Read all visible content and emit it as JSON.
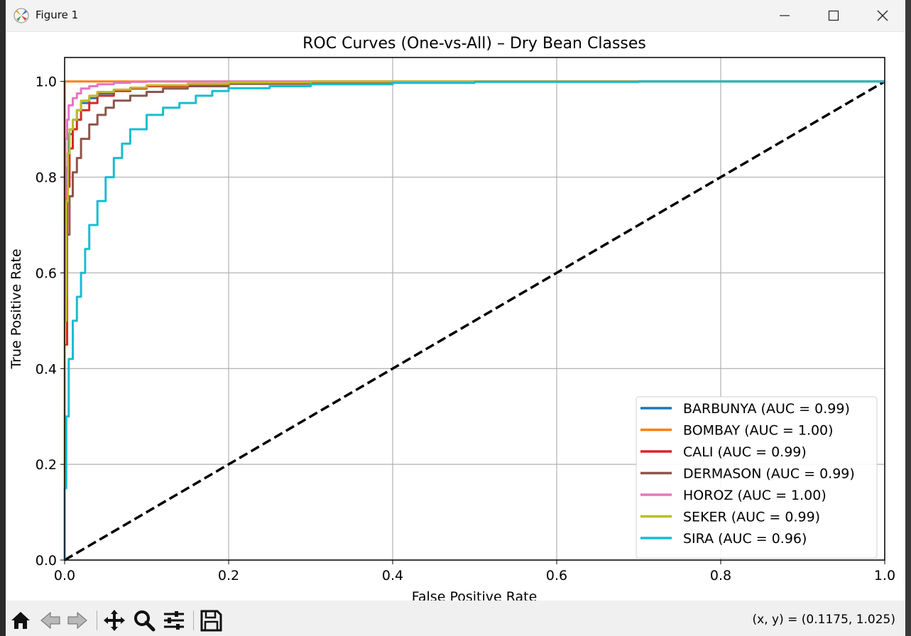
{
  "window": {
    "title": "Figure 1",
    "app_icon": "matplotlib-icon",
    "controls": [
      "minimize-icon",
      "maximize-icon",
      "close-icon"
    ]
  },
  "toolbar": {
    "buttons": [
      {
        "name": "home-icon",
        "enabled": true
      },
      {
        "name": "back-arrow-icon",
        "enabled": false
      },
      {
        "name": "forward-arrow-icon",
        "enabled": false
      },
      {
        "name": "pan-icon",
        "enabled": true
      },
      {
        "name": "zoom-icon",
        "enabled": true
      },
      {
        "name": "configure-subplots-icon",
        "enabled": true
      },
      {
        "name": "save-icon",
        "enabled": true
      }
    ],
    "coords": "(x, y) = (0.1175, 1.025)"
  },
  "chart_data": {
    "type": "line",
    "title": "ROC Curves (One-vs-All) – Dry Bean Classes",
    "xlabel": "False Positive Rate",
    "ylabel": "True Positive Rate",
    "xlim": [
      0,
      1
    ],
    "ylim": [
      0,
      1.05
    ],
    "xticks": [
      "0.0",
      "0.2",
      "0.4",
      "0.6",
      "0.8",
      "1.0"
    ],
    "yticks": [
      "0.0",
      "0.2",
      "0.4",
      "0.6",
      "0.8",
      "1.0"
    ],
    "grid": true,
    "legend_position": "lower right",
    "series": [
      {
        "name": "BARBUNYA (AUC = 0.99)",
        "color": "#1f77b4",
        "x": [
          0,
          0.002,
          0.005,
          0.01,
          0.015,
          0.02,
          0.03,
          0.04,
          0.06,
          0.08,
          0.1,
          0.15,
          0.2,
          0.3,
          0.5,
          1.0
        ],
        "y": [
          0,
          0.6,
          0.82,
          0.89,
          0.92,
          0.94,
          0.955,
          0.965,
          0.975,
          0.982,
          0.986,
          0.99,
          0.993,
          0.996,
          0.998,
          1.0
        ]
      },
      {
        "name": "BOMBAY (AUC = 1.00)",
        "color": "#ff7f0e",
        "x": [
          0,
          0,
          0.001,
          1.0
        ],
        "y": [
          0,
          0.998,
          1.0,
          1.0
        ]
      },
      {
        "name": "CALI (AUC = 0.99)",
        "color": "#d62728",
        "x": [
          0,
          0.003,
          0.006,
          0.01,
          0.015,
          0.02,
          0.03,
          0.04,
          0.06,
          0.08,
          0.1,
          0.15,
          0.2,
          0.3,
          0.5,
          1.0
        ],
        "y": [
          0,
          0.45,
          0.78,
          0.86,
          0.9,
          0.92,
          0.94,
          0.955,
          0.97,
          0.98,
          0.985,
          0.99,
          0.993,
          0.996,
          0.998,
          1.0
        ]
      },
      {
        "name": "DERMASON (AUC = 0.99)",
        "color": "#8c564b",
        "x": [
          0,
          0.003,
          0.006,
          0.01,
          0.015,
          0.02,
          0.03,
          0.04,
          0.05,
          0.06,
          0.08,
          0.1,
          0.12,
          0.15,
          0.2,
          0.3,
          0.5,
          1.0
        ],
        "y": [
          0,
          0.55,
          0.68,
          0.76,
          0.81,
          0.84,
          0.88,
          0.91,
          0.93,
          0.945,
          0.96,
          0.97,
          0.978,
          0.985,
          0.99,
          0.995,
          0.998,
          1.0
        ]
      },
      {
        "name": "HOROZ (AUC = 1.00)",
        "color": "#e377c2",
        "x": [
          0,
          0.001,
          0.003,
          0.005,
          0.01,
          0.015,
          0.02,
          0.03,
          0.04,
          0.06,
          0.08,
          0.1,
          0.15,
          0.2,
          1.0
        ],
        "y": [
          0,
          0.7,
          0.88,
          0.92,
          0.95,
          0.965,
          0.975,
          0.985,
          0.99,
          0.994,
          0.997,
          0.999,
          1.0,
          1.0,
          1.0
        ]
      },
      {
        "name": "SEKER (AUC = 0.99)",
        "color": "#bcbd22",
        "x": [
          0,
          0.002,
          0.004,
          0.006,
          0.01,
          0.015,
          0.02,
          0.03,
          0.04,
          0.06,
          0.08,
          0.1,
          0.15,
          0.2,
          0.3,
          1.0
        ],
        "y": [
          0,
          0.5,
          0.75,
          0.85,
          0.9,
          0.92,
          0.94,
          0.96,
          0.97,
          0.978,
          0.983,
          0.987,
          0.992,
          0.995,
          0.998,
          1.0
        ]
      },
      {
        "name": "SIRA (AUC = 0.96)",
        "color": "#17becf",
        "x": [
          0,
          0.002,
          0.005,
          0.01,
          0.015,
          0.02,
          0.025,
          0.03,
          0.04,
          0.05,
          0.06,
          0.07,
          0.08,
          0.1,
          0.12,
          0.14,
          0.16,
          0.18,
          0.2,
          0.25,
          0.3,
          0.4,
          0.5,
          0.7,
          1.0
        ],
        "y": [
          0,
          0.15,
          0.3,
          0.42,
          0.5,
          0.55,
          0.6,
          0.65,
          0.7,
          0.75,
          0.8,
          0.84,
          0.87,
          0.9,
          0.93,
          0.945,
          0.955,
          0.97,
          0.98,
          0.986,
          0.99,
          0.994,
          0.997,
          0.999,
          1.0
        ]
      }
    ],
    "reference_line": {
      "x": [
        0,
        1
      ],
      "y": [
        0,
        1
      ],
      "color": "#000000",
      "style": "dashed"
    }
  }
}
